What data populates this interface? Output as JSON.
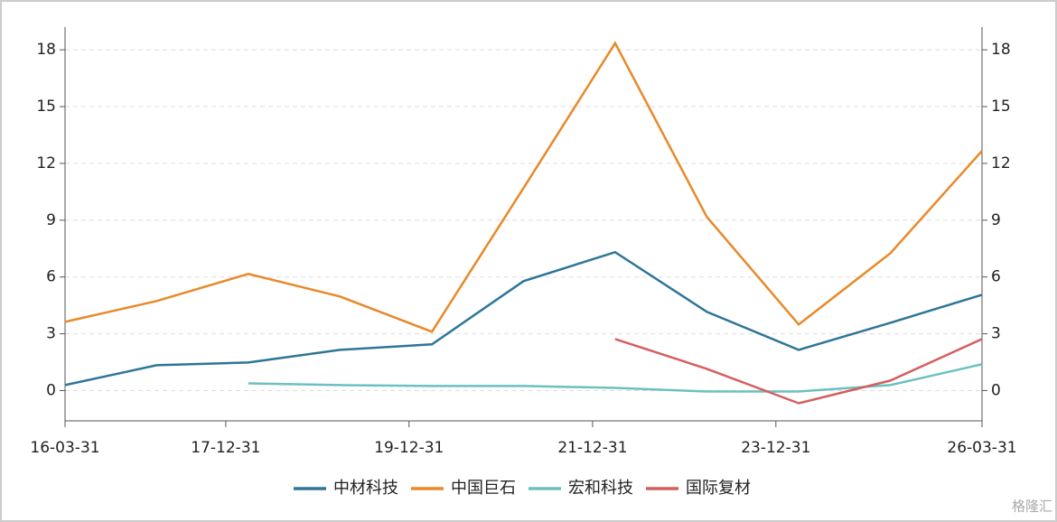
{
  "chart_data": {
    "type": "line",
    "x": [
      "16-03-31",
      "17-03-31",
      "18-03-31",
      "19-03-31",
      "20-03-31",
      "21-03-31",
      "22-03-31",
      "23-03-31",
      "24-03-31",
      "25-03-31",
      "26-03-31"
    ],
    "xlim": [
      "16-03-31",
      "26-03-31"
    ],
    "xticks": [
      "16-03-31",
      "17-12-31",
      "19-12-31",
      "21-12-31",
      "23-12-31",
      "26-03-31"
    ],
    "ylim": [
      -1.6,
      19.2
    ],
    "yticks": [
      0,
      3,
      6,
      9,
      12,
      15,
      18
    ],
    "grid": true,
    "legend": "bottom",
    "series": [
      {
        "name": "中材科技",
        "color": "#2e7598",
        "values": [
          0.29,
          1.34,
          1.48,
          2.15,
          2.44,
          5.78,
          7.31,
          4.16,
          2.15,
          3.58,
          5.06
        ]
      },
      {
        "name": "中国巨石",
        "color": "#e8892a",
        "values": [
          3.63,
          4.73,
          6.16,
          4.97,
          3.11,
          10.7,
          18.35,
          9.17,
          3.49,
          7.26,
          12.66
        ]
      },
      {
        "name": "宏和科技",
        "color": "#6cc0c0",
        "values": [
          null,
          null,
          0.38,
          0.29,
          0.24,
          0.24,
          0.14,
          -0.05,
          -0.05,
          0.29,
          1.39
        ]
      },
      {
        "name": "国际复材",
        "color": "#d45f5f",
        "values": [
          null,
          null,
          null,
          null,
          null,
          null,
          2.72,
          1.15,
          -0.67,
          0.53,
          2.72
        ]
      }
    ],
    "watermark": "格隆汇"
  }
}
